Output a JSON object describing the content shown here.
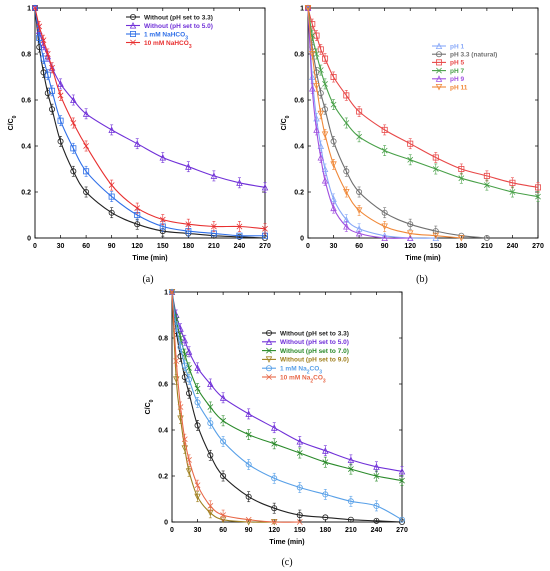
{
  "chart_data": [
    {
      "type": "line",
      "caption": "(a)",
      "xlabel": "Time (min)",
      "ylabel": "C/C0",
      "xlim": [
        0,
        270
      ],
      "ylim": [
        0,
        1
      ],
      "xticks": [
        0,
        30,
        60,
        90,
        120,
        150,
        180,
        210,
        240,
        270
      ],
      "yticks": [
        0,
        0.2,
        0.4,
        0.6,
        0.8,
        1
      ],
      "legend_position": "top-right",
      "series": [
        {
          "name": "Without (pH set to 3.3)",
          "color": "#222222",
          "marker": "circle",
          "x": [
            0,
            5,
            10,
            15,
            20,
            30,
            45,
            60,
            90,
            120,
            150,
            180,
            210,
            240,
            270
          ],
          "y": [
            1.0,
            0.83,
            0.72,
            0.63,
            0.56,
            0.42,
            0.29,
            0.2,
            0.11,
            0.06,
            0.03,
            0.02,
            0.01,
            0.005,
            0.0
          ]
        },
        {
          "name": "Without (pH set to 5.0)",
          "color": "#7030d8",
          "marker": "triangle",
          "x": [
            0,
            5,
            10,
            15,
            20,
            30,
            45,
            60,
            90,
            120,
            150,
            180,
            210,
            240,
            270
          ],
          "y": [
            1.0,
            0.9,
            0.84,
            0.79,
            0.74,
            0.67,
            0.6,
            0.54,
            0.47,
            0.41,
            0.35,
            0.31,
            0.27,
            0.24,
            0.22
          ]
        },
        {
          "name": "1 mM NaHCO3",
          "color": "#3070e8",
          "marker": "square",
          "x": [
            0,
            5,
            10,
            15,
            20,
            30,
            45,
            60,
            90,
            120,
            150,
            180,
            210,
            240,
            270
          ],
          "y": [
            1.0,
            0.87,
            0.78,
            0.71,
            0.64,
            0.51,
            0.39,
            0.29,
            0.18,
            0.1,
            0.05,
            0.03,
            0.02,
            0.01,
            0.01
          ]
        },
        {
          "name": "10 mM NaHCO3",
          "color": "#e83030",
          "marker": "x",
          "x": [
            0,
            5,
            10,
            15,
            20,
            30,
            45,
            60,
            90,
            120,
            150,
            180,
            210,
            240,
            270
          ],
          "y": [
            1.0,
            0.92,
            0.86,
            0.8,
            0.74,
            0.62,
            0.5,
            0.4,
            0.23,
            0.13,
            0.08,
            0.06,
            0.05,
            0.05,
            0.04
          ]
        }
      ]
    },
    {
      "type": "line",
      "caption": "(b)",
      "xlabel": "Time (min)",
      "ylabel": "C/C0",
      "xlim": [
        0,
        270
      ],
      "ylim": [
        0,
        1
      ],
      "xticks": [
        0,
        30,
        60,
        90,
        120,
        150,
        180,
        210,
        240,
        270
      ],
      "yticks": [
        0,
        0.2,
        0.4,
        0.6,
        0.8,
        1
      ],
      "legend_position": "top-right",
      "series": [
        {
          "name": "pH 1",
          "color": "#88a8f8",
          "marker": "triangle",
          "x": [
            0,
            5,
            10,
            15,
            20,
            30,
            45,
            60,
            90,
            120,
            150
          ],
          "y": [
            1.0,
            0.7,
            0.52,
            0.4,
            0.3,
            0.17,
            0.08,
            0.04,
            0.01,
            0.0,
            0.0
          ]
        },
        {
          "name": "pH 3.3 (natural)",
          "color": "#707070",
          "marker": "circle",
          "x": [
            0,
            5,
            10,
            15,
            20,
            30,
            45,
            60,
            90,
            120,
            150,
            180,
            210
          ],
          "y": [
            1.0,
            0.83,
            0.72,
            0.63,
            0.56,
            0.42,
            0.29,
            0.2,
            0.11,
            0.06,
            0.03,
            0.01,
            0.0
          ]
        },
        {
          "name": "pH 5",
          "color": "#e84848",
          "marker": "square",
          "x": [
            0,
            5,
            10,
            15,
            20,
            30,
            45,
            60,
            90,
            120,
            150,
            180,
            210,
            240,
            270
          ],
          "y": [
            1.0,
            0.93,
            0.88,
            0.82,
            0.78,
            0.7,
            0.62,
            0.55,
            0.47,
            0.41,
            0.35,
            0.3,
            0.27,
            0.24,
            0.22
          ]
        },
        {
          "name": "pH 7",
          "color": "#48a048",
          "marker": "x",
          "x": [
            0,
            5,
            10,
            15,
            20,
            30,
            45,
            60,
            90,
            120,
            150,
            180,
            210,
            240,
            270
          ],
          "y": [
            1.0,
            0.88,
            0.8,
            0.73,
            0.67,
            0.58,
            0.5,
            0.44,
            0.38,
            0.34,
            0.3,
            0.26,
            0.23,
            0.2,
            0.18
          ]
        },
        {
          "name": "pH 9",
          "color": "#a050e0",
          "marker": "triangle",
          "x": [
            0,
            5,
            10,
            15,
            20,
            30,
            45,
            60,
            90,
            120
          ],
          "y": [
            1.0,
            0.65,
            0.47,
            0.35,
            0.25,
            0.13,
            0.05,
            0.02,
            0.0,
            0.0
          ]
        },
        {
          "name": "pH 11",
          "color": "#f08838",
          "marker": "triangle-down",
          "x": [
            0,
            5,
            10,
            15,
            20,
            30,
            45,
            60,
            90,
            120,
            150,
            180
          ],
          "y": [
            1.0,
            0.8,
            0.66,
            0.54,
            0.45,
            0.32,
            0.2,
            0.12,
            0.05,
            0.02,
            0.01,
            0.0
          ]
        }
      ]
    },
    {
      "type": "line",
      "caption": "(c)",
      "xlabel": "Time (min)",
      "ylabel": "C/C0",
      "xlim": [
        0,
        270
      ],
      "ylim": [
        0,
        1
      ],
      "xticks": [
        0,
        30,
        60,
        90,
        120,
        150,
        180,
        210,
        240,
        270
      ],
      "yticks": [
        0,
        0.2,
        0.4,
        0.6,
        0.8,
        1
      ],
      "legend_position": "top-right",
      "series": [
        {
          "name": "Without (pH set to 3.3)",
          "color": "#222222",
          "marker": "circle",
          "x": [
            0,
            5,
            10,
            15,
            20,
            30,
            45,
            60,
            90,
            120,
            150,
            180,
            210,
            240,
            270
          ],
          "y": [
            1.0,
            0.83,
            0.72,
            0.63,
            0.56,
            0.42,
            0.29,
            0.2,
            0.11,
            0.06,
            0.03,
            0.02,
            0.01,
            0.005,
            0.0
          ]
        },
        {
          "name": "Without (pH set to 5.0)",
          "color": "#7030d8",
          "marker": "triangle",
          "x": [
            0,
            5,
            10,
            15,
            20,
            30,
            45,
            60,
            90,
            120,
            150,
            180,
            210,
            240,
            270
          ],
          "y": [
            1.0,
            0.9,
            0.84,
            0.79,
            0.74,
            0.67,
            0.6,
            0.54,
            0.47,
            0.41,
            0.35,
            0.31,
            0.27,
            0.24,
            0.22
          ]
        },
        {
          "name": "Without (pH set to 7.0)",
          "color": "#2a8a2a",
          "marker": "x",
          "x": [
            0,
            5,
            10,
            15,
            20,
            30,
            45,
            60,
            90,
            120,
            150,
            180,
            210,
            240,
            270
          ],
          "y": [
            1.0,
            0.88,
            0.8,
            0.73,
            0.67,
            0.58,
            0.5,
            0.44,
            0.38,
            0.34,
            0.3,
            0.26,
            0.23,
            0.2,
            0.18
          ]
        },
        {
          "name": "Without (pH set to 9.0)",
          "color": "#a08020",
          "marker": "triangle-down",
          "x": [
            0,
            5,
            10,
            15,
            20,
            30,
            45,
            60,
            90,
            120
          ],
          "y": [
            1.0,
            0.62,
            0.45,
            0.32,
            0.22,
            0.11,
            0.04,
            0.01,
            0.0,
            0.0
          ]
        },
        {
          "name": "1 mM Na2CO3",
          "color": "#58a0e8",
          "marker": "circle",
          "x": [
            0,
            5,
            10,
            15,
            20,
            30,
            45,
            60,
            90,
            120,
            150,
            180,
            210,
            240,
            270
          ],
          "y": [
            1.0,
            0.85,
            0.76,
            0.68,
            0.62,
            0.52,
            0.43,
            0.35,
            0.25,
            0.19,
            0.15,
            0.12,
            0.09,
            0.07,
            0.01
          ]
        },
        {
          "name": "10 mM Na2CO3",
          "color": "#e86848",
          "marker": "x",
          "x": [
            0,
            5,
            10,
            15,
            20,
            30,
            45,
            60,
            90,
            120,
            150
          ],
          "y": [
            1.0,
            0.7,
            0.5,
            0.36,
            0.27,
            0.16,
            0.07,
            0.03,
            0.01,
            0.0,
            0.0
          ]
        }
      ]
    }
  ]
}
